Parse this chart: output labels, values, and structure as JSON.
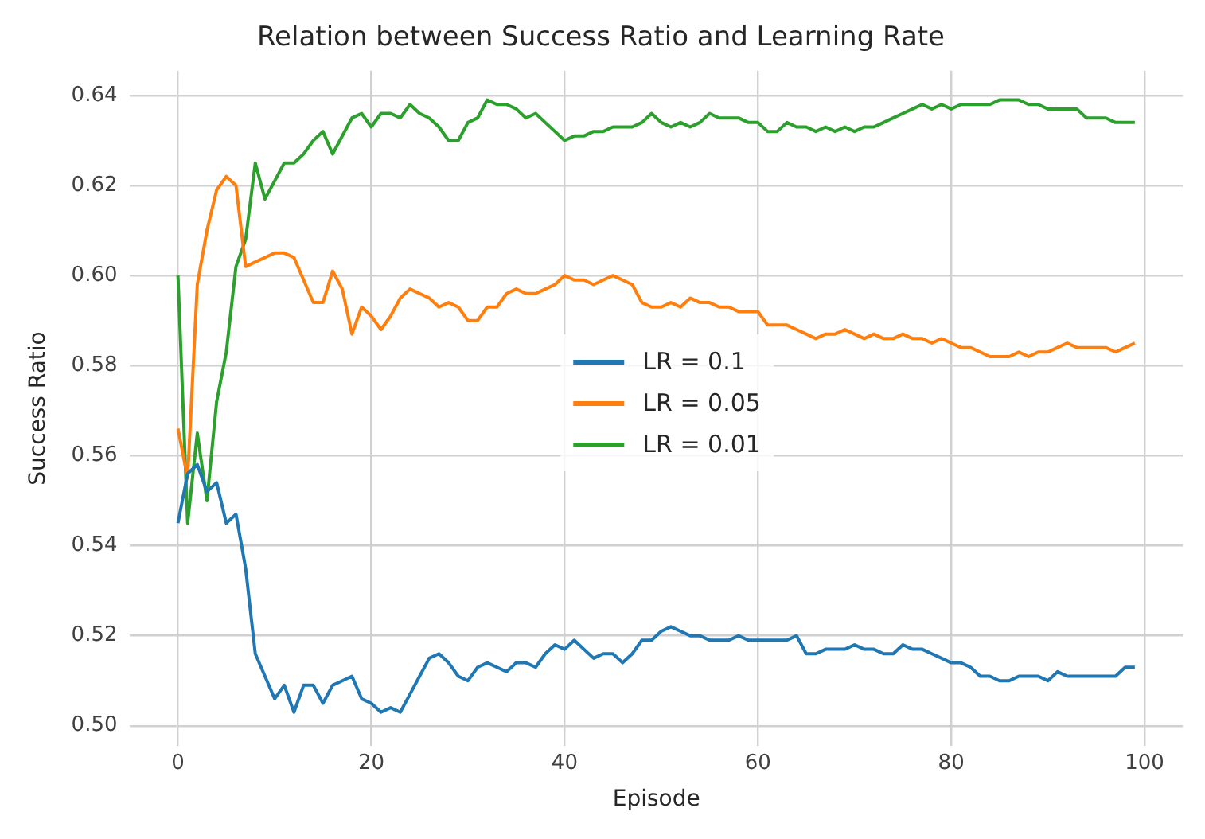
{
  "chart_data": {
    "type": "line",
    "title": "Relation between Success Ratio and Learning Rate",
    "xlabel": "Episode",
    "ylabel": "Success Ratio",
    "x": [
      0,
      1,
      2,
      3,
      4,
      5,
      6,
      7,
      8,
      9,
      10,
      11,
      12,
      13,
      14,
      15,
      16,
      17,
      18,
      19,
      20,
      21,
      22,
      23,
      24,
      25,
      26,
      27,
      28,
      29,
      30,
      31,
      32,
      33,
      34,
      35,
      36,
      37,
      38,
      39,
      40,
      41,
      42,
      43,
      44,
      45,
      46,
      47,
      48,
      49,
      50,
      51,
      52,
      53,
      54,
      55,
      56,
      57,
      58,
      59,
      60,
      61,
      62,
      63,
      64,
      65,
      66,
      67,
      68,
      69,
      70,
      71,
      72,
      73,
      74,
      75,
      76,
      77,
      78,
      79,
      80,
      81,
      82,
      83,
      84,
      85,
      86,
      87,
      88,
      89,
      90,
      91,
      92,
      93,
      94,
      95,
      96,
      97,
      98,
      99
    ],
    "series": [
      {
        "name": "LR = 0.1",
        "color": "#1f77b4",
        "values": [
          0.545,
          0.556,
          0.558,
          0.552,
          0.554,
          0.545,
          0.547,
          0.535,
          0.516,
          0.511,
          0.506,
          0.509,
          0.503,
          0.509,
          0.509,
          0.505,
          0.509,
          0.51,
          0.511,
          0.506,
          0.505,
          0.503,
          0.504,
          0.503,
          0.507,
          0.511,
          0.515,
          0.516,
          0.514,
          0.511,
          0.51,
          0.513,
          0.514,
          0.513,
          0.512,
          0.514,
          0.514,
          0.513,
          0.516,
          0.518,
          0.517,
          0.519,
          0.517,
          0.515,
          0.516,
          0.516,
          0.514,
          0.516,
          0.519,
          0.519,
          0.521,
          0.522,
          0.521,
          0.52,
          0.52,
          0.519,
          0.519,
          0.519,
          0.52,
          0.519,
          0.519,
          0.519,
          0.519,
          0.519,
          0.52,
          0.516,
          0.516,
          0.517,
          0.517,
          0.517,
          0.518,
          0.517,
          0.517,
          0.516,
          0.516,
          0.518,
          0.517,
          0.517,
          0.516,
          0.515,
          0.514,
          0.514,
          0.513,
          0.511,
          0.511,
          0.51,
          0.51,
          0.511,
          0.511,
          0.511,
          0.51,
          0.512,
          0.511,
          0.511,
          0.511,
          0.511,
          0.511,
          0.511,
          0.513,
          0.513
        ]
      },
      {
        "name": "LR = 0.05",
        "color": "#ff7f0e",
        "values": [
          0.566,
          0.555,
          0.598,
          0.61,
          0.619,
          0.622,
          0.62,
          0.602,
          0.603,
          0.604,
          0.605,
          0.605,
          0.604,
          0.599,
          0.594,
          0.594,
          0.601,
          0.597,
          0.587,
          0.593,
          0.591,
          0.588,
          0.591,
          0.595,
          0.597,
          0.596,
          0.595,
          0.593,
          0.594,
          0.593,
          0.59,
          0.59,
          0.593,
          0.593,
          0.596,
          0.597,
          0.596,
          0.596,
          0.597,
          0.598,
          0.6,
          0.599,
          0.599,
          0.598,
          0.599,
          0.6,
          0.599,
          0.598,
          0.594,
          0.593,
          0.593,
          0.594,
          0.593,
          0.595,
          0.594,
          0.594,
          0.593,
          0.593,
          0.592,
          0.592,
          0.592,
          0.589,
          0.589,
          0.589,
          0.588,
          0.587,
          0.586,
          0.587,
          0.587,
          0.588,
          0.587,
          0.586,
          0.587,
          0.586,
          0.586,
          0.587,
          0.586,
          0.586,
          0.585,
          0.586,
          0.585,
          0.584,
          0.584,
          0.583,
          0.582,
          0.582,
          0.582,
          0.583,
          0.582,
          0.583,
          0.583,
          0.584,
          0.585,
          0.584,
          0.584,
          0.584,
          0.584,
          0.583,
          0.584,
          0.585
        ]
      },
      {
        "name": "LR = 0.01",
        "color": "#2ca02c",
        "values": [
          0.6,
          0.545,
          0.565,
          0.55,
          0.572,
          0.583,
          0.602,
          0.608,
          0.625,
          0.617,
          0.621,
          0.625,
          0.625,
          0.627,
          0.63,
          0.632,
          0.627,
          0.631,
          0.635,
          0.636,
          0.633,
          0.636,
          0.636,
          0.635,
          0.638,
          0.636,
          0.635,
          0.633,
          0.63,
          0.63,
          0.634,
          0.635,
          0.639,
          0.638,
          0.638,
          0.637,
          0.635,
          0.636,
          0.634,
          0.632,
          0.63,
          0.631,
          0.631,
          0.632,
          0.632,
          0.633,
          0.633,
          0.633,
          0.634,
          0.636,
          0.634,
          0.633,
          0.634,
          0.633,
          0.634,
          0.636,
          0.635,
          0.635,
          0.635,
          0.634,
          0.634,
          0.632,
          0.632,
          0.634,
          0.633,
          0.633,
          0.632,
          0.633,
          0.632,
          0.633,
          0.632,
          0.633,
          0.633,
          0.634,
          0.635,
          0.636,
          0.637,
          0.638,
          0.637,
          0.638,
          0.637,
          0.638,
          0.638,
          0.638,
          0.638,
          0.639,
          0.639,
          0.639,
          0.638,
          0.638,
          0.637,
          0.637,
          0.637,
          0.637,
          0.635,
          0.635,
          0.635,
          0.634,
          0.634,
          0.634
        ]
      }
    ],
    "xlim": [
      -4.95,
      103.95
    ],
    "xticks": [
      0,
      20,
      40,
      60,
      80,
      100
    ],
    "ylim": [
      0.4955,
      0.6455
    ],
    "yticks": [
      {
        "value": 0.5,
        "label": "0.50"
      },
      0.52,
      0.54,
      0.56,
      0.58,
      {
        "value": 0.6,
        "label": "0.60"
      },
      0.62,
      0.64
    ],
    "grid": true,
    "legend": "center",
    "marker": "none",
    "line_style": "solid"
  }
}
